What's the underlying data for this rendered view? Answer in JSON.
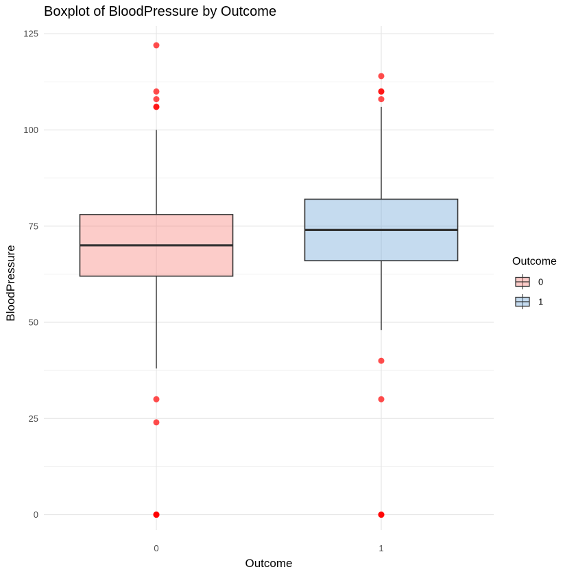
{
  "chart_data": {
    "type": "boxplot",
    "title": "Boxplot of BloodPressure by Outcome",
    "xlabel": "Outcome",
    "ylabel": "BloodPressure",
    "ylim": [
      -4,
      127
    ],
    "y_ticks": [
      0,
      25,
      50,
      75,
      100,
      125
    ],
    "grid": true,
    "legend": {
      "title": "Outcome",
      "position": "right"
    },
    "categories": [
      "0",
      "1"
    ],
    "series": [
      {
        "name": "0",
        "color": "#F8766D",
        "whisker_low": 38,
        "q1": 62,
        "median": 70,
        "q3": 78,
        "whisker_high": 100,
        "outliers": [
          122,
          110,
          108,
          106,
          106,
          30,
          24,
          0,
          0,
          0,
          0
        ]
      },
      {
        "name": "1",
        "color": "#619CD3",
        "whisker_low": 48,
        "q1": 66,
        "median": 74,
        "q3": 82,
        "whisker_high": 106,
        "outliers": [
          114,
          110,
          110,
          108,
          40,
          30,
          0,
          0,
          0
        ]
      }
    ],
    "outlier_color": "#FF0000"
  }
}
